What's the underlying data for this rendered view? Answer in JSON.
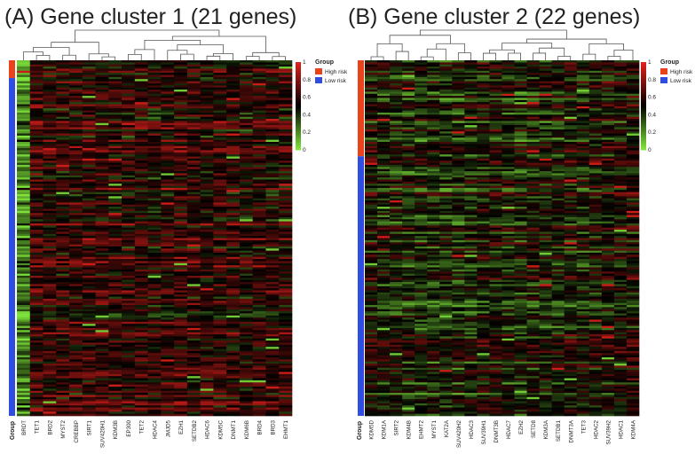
{
  "colors": {
    "high_risk": "#e8431b",
    "low_risk": "#2f4de0",
    "scale_low": "#7ee23a",
    "scale_mid": "#000000",
    "scale_high": "#e0201b"
  },
  "chart_data": [
    {
      "type": "heatmap",
      "title": "(A) Gene cluster 1 (21 genes)",
      "xlabel": "",
      "ylabel": "Group",
      "legend": {
        "title": "Group",
        "entries": [
          "High risk",
          "Low risk"
        ],
        "placement": "right"
      },
      "colorbar": {
        "ticks": [
          "1",
          "0.8",
          "0.6",
          "0.4",
          "0.2",
          "0"
        ],
        "range": [
          0,
          1
        ]
      },
      "genes": [
        "BRDT",
        "TET1",
        "BRD2",
        "MYST2",
        "CREBBP",
        "SIRT1",
        "SUV420H1",
        "KDM3B",
        "EP300",
        "TET2",
        "HDAC4",
        "JMJD5",
        "EZH1",
        "SETDB2",
        "HDAC6",
        "KDM5C",
        "DNMT1",
        "KDM6B",
        "BRD4",
        "BRD3",
        "EHMT1"
      ],
      "group_fraction": {
        "high_risk": 0.05,
        "low_risk": 0.95
      },
      "mean_expression_by_gene": [
        0.22,
        0.62,
        0.6,
        0.6,
        0.6,
        0.6,
        0.6,
        0.58,
        0.58,
        0.6,
        0.55,
        0.6,
        0.62,
        0.6,
        0.58,
        0.6,
        0.58,
        0.55,
        0.6,
        0.58,
        0.58
      ]
    },
    {
      "type": "heatmap",
      "title": "(B) Gene cluster 2 (22 genes)",
      "xlabel": "",
      "ylabel": "Group",
      "legend": {
        "title": "Group",
        "entries": [
          "High risk",
          "Low risk"
        ],
        "placement": "right"
      },
      "colorbar": {
        "ticks": [
          "1",
          "0.8",
          "0.6",
          "0.4",
          "0.2",
          "0"
        ],
        "range": [
          0,
          1
        ]
      },
      "genes": [
        "KDM5D",
        "KDM1A",
        "SIRT2",
        "KDM4B",
        "EHMT2",
        "MYST1",
        "KAT2A",
        "SUV420H2",
        "HDAC3",
        "SUV39H1",
        "DNMT3B",
        "HDAC7",
        "EZH2",
        "SETD8",
        "KDM3A",
        "SETDB1",
        "DNMT3A",
        "TET3",
        "HDAC2",
        "SUV39H2",
        "HDAC1",
        "KDM4A"
      ],
      "group_fraction": {
        "high_risk": 0.27,
        "low_risk": 0.73
      },
      "mean_expression_by_gene": [
        0.5,
        0.45,
        0.45,
        0.42,
        0.42,
        0.42,
        0.4,
        0.42,
        0.45,
        0.48,
        0.48,
        0.45,
        0.42,
        0.45,
        0.45,
        0.45,
        0.48,
        0.45,
        0.48,
        0.5,
        0.5,
        0.52
      ]
    }
  ]
}
